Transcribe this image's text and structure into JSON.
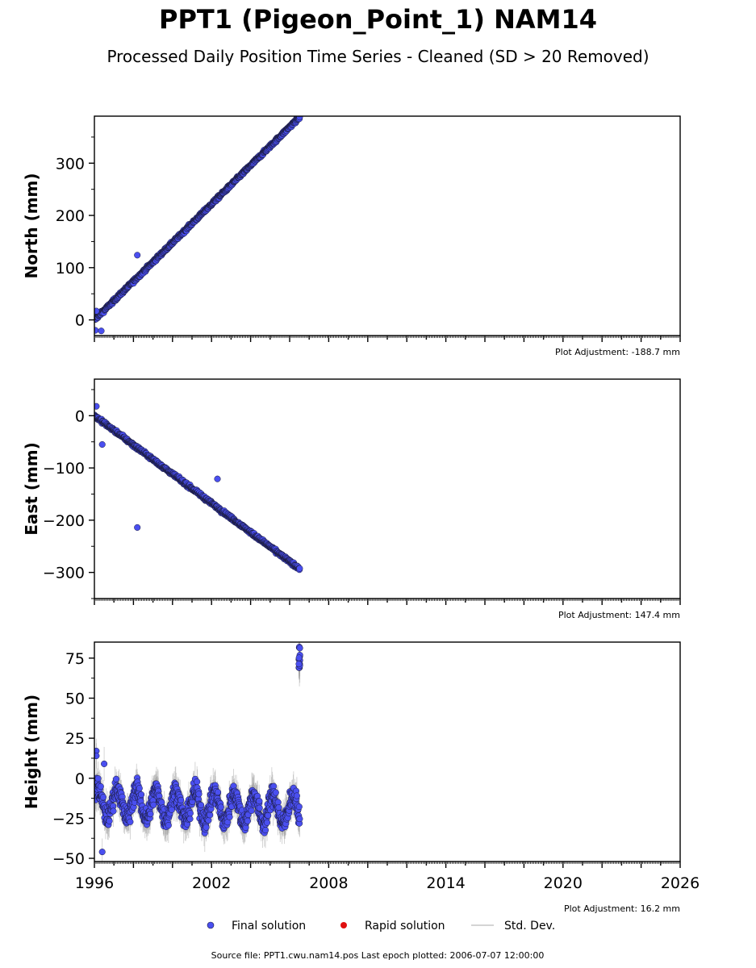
{
  "header": {
    "title": "PPT1 (Pigeon_Point_1) NAM14",
    "subtitle": "Processed Daily Position Time Series - Cleaned (SD > 20 Removed)"
  },
  "legend": {
    "final": "Final solution",
    "rapid": "Rapid solution",
    "std": "Std. Dev."
  },
  "footer": {
    "source": "Source file: PPT1.cwu.nam14.pos  Last epoch plotted: 2006-07-07 12:00:00"
  },
  "colors": {
    "final": "#4a4ff0",
    "final_edge": "#1a1a3a",
    "rapid": "#e01010",
    "std": "#999999"
  },
  "chart_data": [
    {
      "type": "scatter",
      "panel": "north",
      "ylabel": "North (mm)",
      "adjustment": "Plot Adjustment: -188.7 mm",
      "xlim": [
        1996,
        2026
      ],
      "ylim": [
        -30,
        390
      ],
      "yticks": [
        0,
        100,
        200,
        300
      ],
      "ytick_labels": [
        "0",
        "100",
        "200",
        "300"
      ],
      "trend": {
        "start": [
          1996.0,
          0
        ],
        "end": [
          2006.5,
          388
        ],
        "rate_mm_per_year": 37
      },
      "outliers": [
        [
          1996.05,
          -20
        ],
        [
          1996.1,
          17
        ],
        [
          1996.35,
          -21
        ],
        [
          1998.2,
          124
        ]
      ],
      "series": [
        {
          "name": "Final solution"
        }
      ]
    },
    {
      "type": "scatter",
      "panel": "east",
      "ylabel": "East (mm)",
      "adjustment": "Plot Adjustment: 147.4 mm",
      "xlim": [
        1996,
        2026
      ],
      "ylim": [
        -350,
        70
      ],
      "yticks": [
        0,
        -100,
        -200,
        -300
      ],
      "ytick_labels": [
        "0",
        "−100",
        "−200",
        "−300"
      ],
      "trend": {
        "start": [
          1996.0,
          0
        ],
        "end": [
          2006.5,
          -293
        ],
        "rate_mm_per_year": -28
      },
      "outliers": [
        [
          1996.1,
          18
        ],
        [
          1996.4,
          -55
        ],
        [
          1998.2,
          -214
        ],
        [
          2002.3,
          -121
        ]
      ],
      "series": [
        {
          "name": "Final solution"
        }
      ]
    },
    {
      "type": "scatter",
      "panel": "height",
      "ylabel": "Height (mm)",
      "adjustment": "Plot Adjustment: 16.2 mm",
      "xlim": [
        1996,
        2026
      ],
      "ylim": [
        -52,
        85
      ],
      "yticks": [
        75,
        50,
        25,
        0,
        -25,
        -50
      ],
      "ytick_labels": [
        "75",
        "50",
        "25",
        "0",
        "−25",
        "−50"
      ],
      "xticks": [
        1996,
        2002,
        2008,
        2014,
        2020,
        2026
      ],
      "xtick_labels": [
        "1996",
        "2002",
        "2008",
        "2014",
        "2020",
        "2026"
      ],
      "baseline_mm": -15,
      "end_mm": -20,
      "seasonal_amplitude_mm": 9,
      "scatter_mm": 6,
      "jump_cluster": {
        "x": 2006.5,
        "y_range": [
          67,
          82
        ]
      },
      "outliers": [
        [
          1996.1,
          17
        ],
        [
          1996.1,
          14
        ],
        [
          1996.4,
          -46
        ],
        [
          1996.5,
          9
        ]
      ],
      "series": [
        {
          "name": "Final solution"
        }
      ]
    }
  ]
}
